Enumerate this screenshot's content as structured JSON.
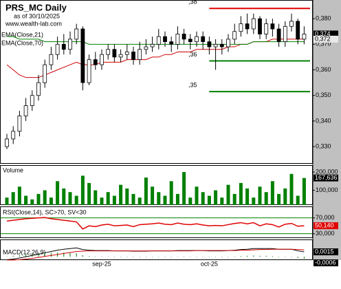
{
  "chart_data": [
    {
      "type": "candlestick",
      "title": "PRS_MC Daily",
      "subtitle": "as of 30/10/2025",
      "source": "www.wealth-lab.com",
      "categories": [
        null,
        null,
        null,
        null,
        null,
        null,
        null,
        null,
        null,
        null,
        null,
        null,
        null,
        null,
        null,
        "sep-25",
        null,
        null,
        null,
        null,
        null,
        null,
        null,
        null,
        null,
        null,
        null,
        null,
        null,
        null,
        null,
        null,
        "oct-25",
        null,
        null,
        null,
        null,
        null,
        null,
        null,
        null,
        null,
        null,
        null,
        null,
        null,
        null,
        null
      ],
      "open": [
        0.33,
        0.333,
        0.336,
        0.342,
        0.346,
        0.35,
        0.355,
        0.362,
        0.366,
        0.37,
        0.368,
        0.372,
        0.376,
        0.355,
        0.364,
        0.362,
        0.366,
        0.368,
        0.365,
        0.366,
        0.367,
        0.364,
        0.368,
        0.369,
        0.37,
        0.373,
        0.371,
        0.37,
        0.374,
        0.372,
        0.371,
        0.373,
        0.371,
        0.369,
        0.37,
        0.369,
        0.372,
        0.375,
        0.378,
        0.376,
        0.38,
        0.374,
        0.378,
        0.376,
        0.371,
        0.377,
        0.379,
        0.372
      ],
      "high": [
        0.335,
        0.338,
        0.344,
        0.349,
        0.352,
        0.358,
        0.364,
        0.369,
        0.373,
        0.374,
        0.375,
        0.378,
        0.377,
        0.366,
        0.367,
        0.368,
        0.37,
        0.37,
        0.368,
        0.37,
        0.369,
        0.371,
        0.372,
        0.373,
        0.376,
        0.375,
        0.373,
        0.377,
        0.376,
        0.374,
        0.375,
        0.375,
        0.373,
        0.372,
        0.372,
        0.374,
        0.378,
        0.381,
        0.382,
        0.382,
        0.381,
        0.38,
        0.38,
        0.378,
        0.379,
        0.382,
        0.38,
        0.377
      ],
      "low": [
        0.329,
        0.331,
        0.334,
        0.34,
        0.344,
        0.348,
        0.353,
        0.36,
        0.364,
        0.366,
        0.366,
        0.37,
        0.352,
        0.354,
        0.36,
        0.36,
        0.364,
        0.363,
        0.363,
        0.364,
        0.362,
        0.362,
        0.366,
        0.367,
        0.368,
        0.369,
        0.367,
        0.368,
        0.37,
        0.368,
        0.369,
        0.368,
        0.366,
        0.36,
        0.366,
        0.367,
        0.37,
        0.373,
        0.374,
        0.374,
        0.372,
        0.372,
        0.373,
        0.369,
        0.369,
        0.375,
        0.37,
        0.37
      ],
      "close": [
        0.333,
        0.336,
        0.342,
        0.346,
        0.35,
        0.355,
        0.362,
        0.366,
        0.37,
        0.368,
        0.372,
        0.376,
        0.355,
        0.364,
        0.362,
        0.366,
        0.368,
        0.365,
        0.366,
        0.367,
        0.364,
        0.368,
        0.369,
        0.37,
        0.373,
        0.371,
        0.37,
        0.374,
        0.372,
        0.371,
        0.373,
        0.371,
        0.369,
        0.37,
        0.369,
        0.372,
        0.375,
        0.378,
        0.376,
        0.38,
        0.374,
        0.378,
        0.376,
        0.371,
        0.377,
        0.379,
        0.372,
        0.374
      ],
      "close_labels": {
        "47": "0,374"
      },
      "up_color": "#ffffff",
      "down_color": "#000000",
      "series": [
        {
          "name": "EMA(Close,21)",
          "color": "#d00000",
          "values": [
            0.362,
            0.36,
            0.358,
            0.357,
            0.357,
            0.357,
            0.358,
            0.359,
            0.36,
            0.361,
            0.362,
            0.363,
            0.362,
            0.362,
            0.362,
            0.363,
            0.363,
            0.363,
            0.363,
            0.364,
            0.364,
            0.364,
            0.364,
            0.365,
            0.365,
            0.366,
            0.366,
            0.367,
            0.367,
            0.367,
            0.368,
            0.368,
            0.368,
            0.368,
            0.368,
            0.369,
            0.369,
            0.37,
            0.37,
            0.371,
            0.371,
            0.371,
            0.372,
            0.372,
            0.372,
            0.372,
            0.372,
            0.372
          ],
          "value_labels": {
            "47": "0,372"
          }
        },
        {
          "name": "EMA(Close,70)",
          "color": "#008000",
          "values": [
            0.373,
            0.373,
            0.372,
            0.372,
            0.372,
            0.372,
            0.371,
            0.371,
            0.371,
            0.371,
            0.371,
            0.371,
            0.371,
            0.37,
            0.37,
            0.37,
            0.37,
            0.37,
            0.37,
            0.37,
            0.37,
            0.37,
            0.37,
            0.37,
            0.37,
            0.37,
            0.37,
            0.37,
            0.37,
            0.37,
            0.37,
            0.37,
            0.37,
            0.37,
            0.37,
            0.37,
            0.37,
            0.37,
            0.37,
            0.371,
            0.371,
            0.371,
            0.371,
            0.371,
            0.371,
            0.371,
            0.371,
            0.371
          ]
        }
      ],
      "levels": [
        {
          "value": 0.384,
          "label": ",38",
          "color": "#e00000"
        },
        {
          "value": 0.3635,
          "label": ",36",
          "color": "#008000"
        },
        {
          "value": 0.3515,
          "label": ",35",
          "color": "#008000"
        }
      ],
      "ylim": [
        0.3233,
        0.3873
      ],
      "yticks": [
        {
          "value": 0.38,
          "label": "0,380"
        },
        {
          "value": 0.37,
          "label": "0,370"
        },
        {
          "value": 0.36,
          "label": "0,360"
        },
        {
          "value": 0.35,
          "label": "0,350"
        },
        {
          "value": 0.34,
          "label": "0,340"
        },
        {
          "value": 0.33,
          "label": "0,330"
        }
      ]
    },
    {
      "type": "bar",
      "title": "Volume",
      "color": "#008000",
      "values": [
        60000,
        90000,
        120000,
        70000,
        50000,
        80000,
        100000,
        60000,
        150000,
        110000,
        90000,
        70000,
        180000,
        140000,
        100000,
        60000,
        90000,
        70000,
        130000,
        110000,
        80000,
        60000,
        170000,
        120000,
        90000,
        70000,
        150000,
        80000,
        200000,
        60000,
        120000,
        90000,
        70000,
        100000,
        60000,
        130000,
        80000,
        140000,
        110000,
        60000,
        120000,
        90000,
        150000,
        80000,
        110000,
        190000,
        70000,
        167636
      ],
      "value_labels": {
        "47": "167,636"
      },
      "ylim": [
        19000,
        238000
      ],
      "yticks": [
        {
          "value": 200000,
          "label": "200,000"
        },
        {
          "value": 100000,
          "label": "100,000"
        }
      ]
    },
    {
      "type": "line",
      "title": "RSI(Close,14), SC>70, SV<30",
      "color": "#e00000",
      "band_color": "#008000",
      "values": [
        62,
        64,
        66,
        68,
        69,
        70,
        71,
        68,
        66,
        64,
        62,
        60,
        42,
        50,
        48,
        52,
        54,
        50,
        51,
        52,
        48,
        53,
        54,
        55,
        57,
        54,
        53,
        57,
        54,
        53,
        55,
        52,
        50,
        51,
        50,
        53,
        56,
        58,
        55,
        58,
        50,
        55,
        53,
        47,
        54,
        56,
        49,
        50.14
      ],
      "value_labels": {
        "47": "50,140"
      },
      "ylim": [
        19,
        99
      ],
      "yticks": [
        {
          "value": 70,
          "label": "70,000"
        },
        {
          "value": 30,
          "label": "30,000"
        }
      ]
    },
    {
      "type": "macd",
      "title": "MACD(12,26,9)",
      "series": [
        {
          "color": "#000000",
          "values": [
            -0.0009,
            -0.0007,
            -0.0004,
            0.0,
            0.0004,
            0.0008,
            0.0012,
            0.0016,
            0.002,
            0.0023,
            0.0025,
            0.0027,
            0.0022,
            0.002,
            0.0019,
            0.0019,
            0.0019,
            0.0018,
            0.0018,
            0.0018,
            0.0017,
            0.0017,
            0.0017,
            0.0018,
            0.0018,
            0.0018,
            0.0018,
            0.0019,
            0.0019,
            0.0019,
            0.0019,
            0.0019,
            0.0018,
            0.0018,
            0.0018,
            0.0019,
            0.002,
            0.0022,
            0.0023,
            0.0025,
            0.0025,
            0.0025,
            0.0025,
            0.0023,
            0.0023,
            0.0023,
            0.0018,
            0.0015
          ],
          "value_labels": {
            "47": "0,0015"
          }
        },
        {
          "color": "#d00000",
          "values": [
            -0.001,
            -0.001,
            -0.0009,
            -0.0007,
            -0.0005,
            -0.0002,
            0.0001,
            0.0004,
            0.0007,
            0.001,
            0.0013,
            0.0016,
            0.0017,
            0.0018,
            0.0018,
            0.0018,
            0.0018,
            0.0018,
            0.0018,
            0.0018,
            0.0018,
            0.0018,
            0.0018,
            0.0018,
            0.0018,
            0.0018,
            0.0018,
            0.0018,
            0.0018,
            0.0018,
            0.0019,
            0.0019,
            0.0019,
            0.0019,
            0.0019,
            0.0019,
            0.0019,
            0.002,
            0.002,
            0.0021,
            0.0022,
            0.0022,
            0.0023,
            0.0023,
            0.0023,
            0.0023,
            0.0022,
            0.0021
          ]
        }
      ],
      "histogram": {
        "color": "#008000",
        "values": [
          0.0001,
          0.0003,
          0.0005,
          0.0007,
          0.0009,
          0.001,
          0.0011,
          0.0012,
          0.0013,
          0.0013,
          0.0012,
          0.0011,
          0.0005,
          0.0002,
          0.0001,
          0.0001,
          0.0001,
          0,
          0,
          0,
          -0.0001,
          -0.0001,
          -0.0001,
          0,
          0,
          0,
          0,
          0.0001,
          0.0001,
          0.0001,
          0,
          0,
          -0.0001,
          -0.0001,
          -0.0001,
          0,
          0.0001,
          0.0002,
          0.0003,
          0.0004,
          0.0003,
          0.0003,
          0.0002,
          0,
          0,
          0,
          -0.0004,
          -0.0006
        ],
        "value_labels": {
          "47": "-0,0006"
        }
      },
      "ylim": [
        -0.00102,
        0.00528
      ]
    }
  ]
}
